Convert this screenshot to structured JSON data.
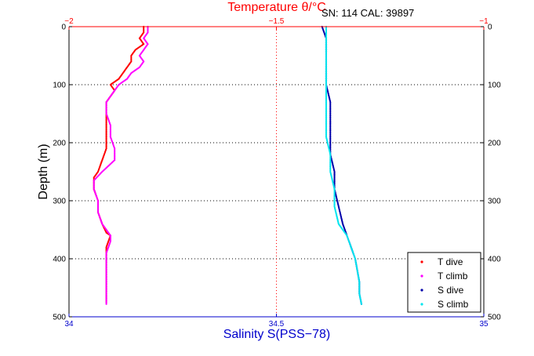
{
  "chart_data": {
    "type": "scatter",
    "annotation": "SN: 114  CAL: 39897",
    "top_axis": {
      "label": "Temperature θ/°C",
      "range": [
        -2,
        -1
      ],
      "ticks": [
        -2,
        -1.5,
        -1
      ],
      "tick_labels": [
        "−2",
        "−1.5",
        "−1"
      ],
      "color": "#ff0000"
    },
    "bottom_axis": {
      "label": "Salinity S(PSS−78)",
      "range": [
        34,
        35
      ],
      "ticks": [
        34,
        34.5,
        35
      ],
      "tick_labels": [
        "34",
        "34.5",
        "35"
      ],
      "color": "#0000cc"
    },
    "y_axis": {
      "label": "Depth (m)",
      "range": [
        0,
        500
      ],
      "inverted": true,
      "ticks": [
        0,
        100,
        200,
        300,
        400,
        500
      ],
      "tick_labels": [
        "0",
        "100",
        "200",
        "300",
        "400",
        "500"
      ]
    },
    "grid": "dotted",
    "legend_position": "bottom-right",
    "series": [
      {
        "name": "T dive",
        "axis": "top",
        "color": "#ff0000",
        "points": [
          [
            -1.82,
            0
          ],
          [
            -1.82,
            10
          ],
          [
            -1.83,
            20
          ],
          [
            -1.82,
            30
          ],
          [
            -1.84,
            40
          ],
          [
            -1.85,
            50
          ],
          [
            -1.85,
            60
          ],
          [
            -1.86,
            70
          ],
          [
            -1.87,
            80
          ],
          [
            -1.88,
            90
          ],
          [
            -1.89,
            95
          ],
          [
            -1.9,
            100
          ],
          [
            -1.89,
            110
          ],
          [
            -1.9,
            120
          ],
          [
            -1.91,
            130
          ],
          [
            -1.91,
            150
          ],
          [
            -1.91,
            170
          ],
          [
            -1.91,
            190
          ],
          [
            -1.91,
            210
          ],
          [
            -1.92,
            230
          ],
          [
            -1.93,
            250
          ],
          [
            -1.94,
            260
          ],
          [
            -1.94,
            280
          ],
          [
            -1.93,
            300
          ],
          [
            -1.93,
            320
          ],
          [
            -1.92,
            340
          ],
          [
            -1.91,
            355
          ],
          [
            -1.9,
            360
          ],
          [
            -1.91,
            380
          ],
          [
            -1.91,
            400
          ],
          [
            -1.91,
            420
          ],
          [
            -1.91,
            440
          ],
          [
            -1.91,
            460
          ],
          [
            -1.91,
            475
          ]
        ]
      },
      {
        "name": "T climb",
        "axis": "top",
        "color": "#ff00ff",
        "points": [
          [
            -1.81,
            0
          ],
          [
            -1.81,
            10
          ],
          [
            -1.82,
            20
          ],
          [
            -1.81,
            30
          ],
          [
            -1.82,
            40
          ],
          [
            -1.83,
            50
          ],
          [
            -1.82,
            60
          ],
          [
            -1.83,
            70
          ],
          [
            -1.85,
            80
          ],
          [
            -1.86,
            90
          ],
          [
            -1.88,
            100
          ],
          [
            -1.89,
            110
          ],
          [
            -1.91,
            130
          ],
          [
            -1.91,
            150
          ],
          [
            -1.9,
            170
          ],
          [
            -1.9,
            190
          ],
          [
            -1.89,
            210
          ],
          [
            -1.89,
            230
          ],
          [
            -1.92,
            250
          ],
          [
            -1.94,
            265
          ],
          [
            -1.94,
            280
          ],
          [
            -1.93,
            300
          ],
          [
            -1.93,
            320
          ],
          [
            -1.92,
            340
          ],
          [
            -1.91,
            350
          ],
          [
            -1.9,
            360
          ],
          [
            -1.9,
            370
          ],
          [
            -1.91,
            390
          ],
          [
            -1.91,
            410
          ],
          [
            -1.91,
            430
          ],
          [
            -1.91,
            450
          ],
          [
            -1.91,
            470
          ],
          [
            -1.91,
            478
          ]
        ]
      },
      {
        "name": "S dive",
        "axis": "bottom",
        "color": "#0000aa",
        "points": [
          [
            34.61,
            0
          ],
          [
            34.62,
            20
          ],
          [
            34.62,
            40
          ],
          [
            34.62,
            60
          ],
          [
            34.62,
            80
          ],
          [
            34.62,
            100
          ],
          [
            34.63,
            130
          ],
          [
            34.63,
            160
          ],
          [
            34.63,
            190
          ],
          [
            34.63,
            220
          ],
          [
            34.64,
            250
          ],
          [
            34.64,
            280
          ],
          [
            34.65,
            310
          ],
          [
            34.66,
            340
          ],
          [
            34.67,
            360
          ],
          [
            34.68,
            380
          ],
          [
            34.69,
            400
          ],
          [
            34.695,
            420
          ],
          [
            34.7,
            440
          ],
          [
            34.7,
            460
          ],
          [
            34.705,
            478
          ]
        ]
      },
      {
        "name": "S climb",
        "axis": "bottom",
        "color": "#00e5ee",
        "points": [
          [
            34.62,
            0
          ],
          [
            34.62,
            20
          ],
          [
            34.62,
            40
          ],
          [
            34.62,
            60
          ],
          [
            34.62,
            80
          ],
          [
            34.62,
            100
          ],
          [
            34.62,
            130
          ],
          [
            34.62,
            160
          ],
          [
            34.62,
            190
          ],
          [
            34.63,
            220
          ],
          [
            34.63,
            250
          ],
          [
            34.64,
            280
          ],
          [
            34.64,
            310
          ],
          [
            34.65,
            340
          ],
          [
            34.67,
            360
          ],
          [
            34.68,
            380
          ],
          [
            34.69,
            400
          ],
          [
            34.695,
            420
          ],
          [
            34.7,
            440
          ],
          [
            34.7,
            460
          ],
          [
            34.705,
            478
          ]
        ]
      }
    ]
  }
}
